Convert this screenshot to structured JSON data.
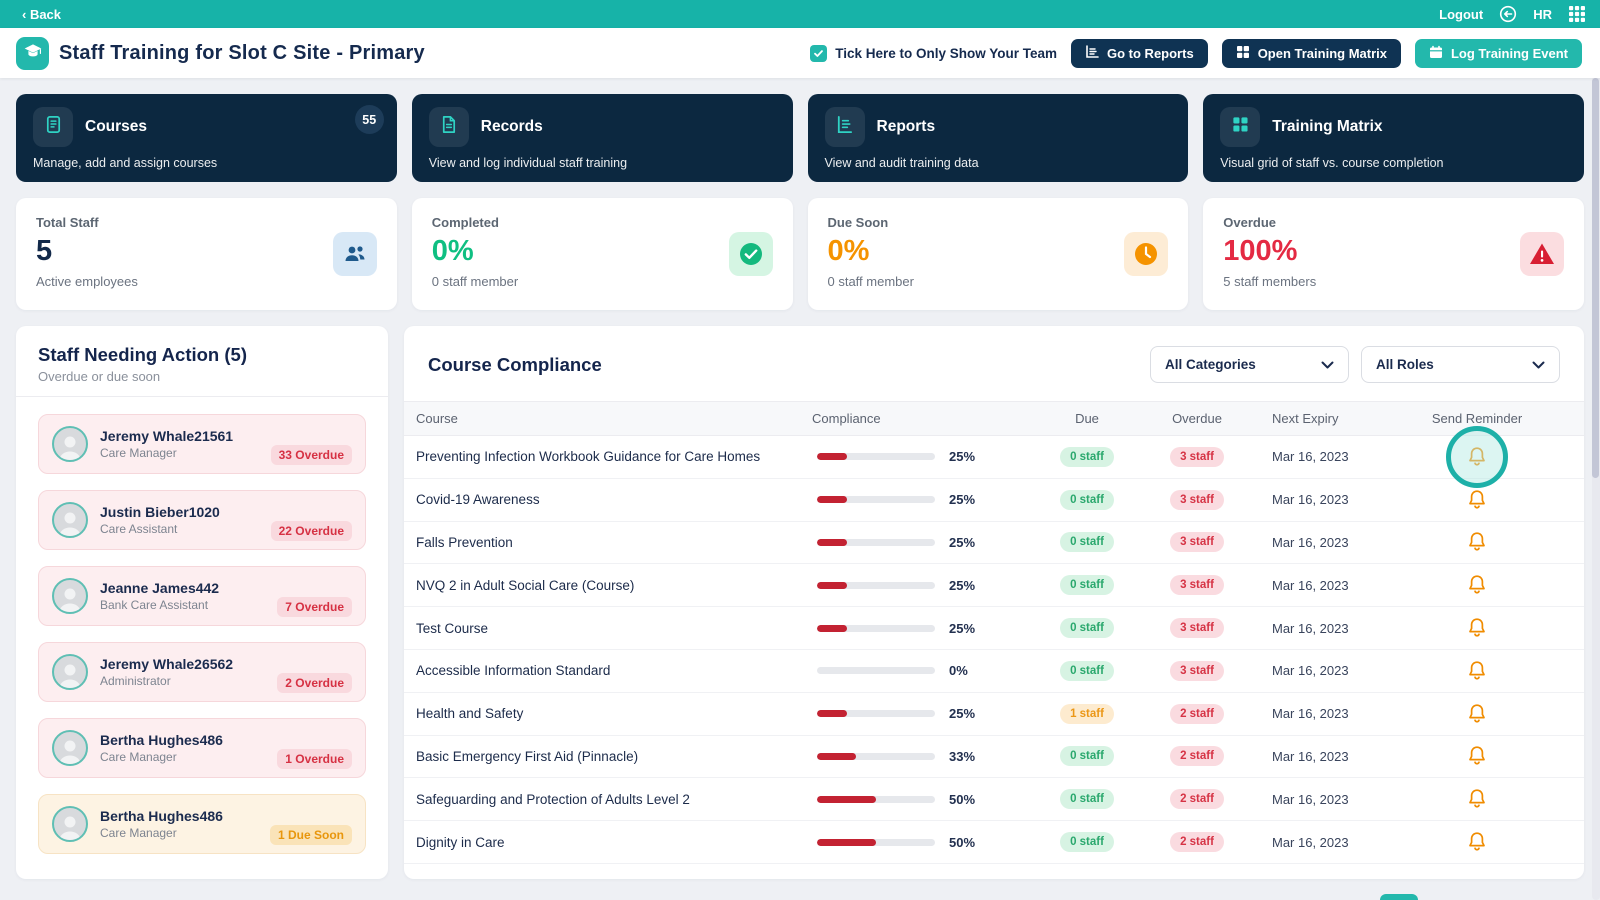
{
  "topbar": {
    "back": "‹ Back",
    "logout": "Logout",
    "user": "HR"
  },
  "header": {
    "title": "Staff Training for Slot C Site - Primary",
    "team_checkbox_label": "Tick Here to Only Show Your Team",
    "buttons": {
      "reports": "Go to Reports",
      "matrix": "Open Training Matrix",
      "log_event": "Log Training Event"
    }
  },
  "nav_cards": [
    {
      "icon": "book-icon",
      "title": "Courses",
      "description": "Manage, add and assign courses",
      "badge": "55"
    },
    {
      "icon": "document-icon",
      "title": "Records",
      "description": "View and log individual staff training",
      "badge": ""
    },
    {
      "icon": "bar-chart-icon",
      "title": "Reports",
      "description": "View and audit training data",
      "badge": ""
    },
    {
      "icon": "matrix-grid-icon",
      "title": "Training Matrix",
      "description": "Visual grid of staff vs. course completion",
      "badge": ""
    }
  ],
  "stat_cards": [
    {
      "label": "Total Staff",
      "value": "5",
      "sub": "Active employees",
      "icon": "people-icon",
      "theme": "blue",
      "value_class": "v-navy"
    },
    {
      "label": "Completed",
      "value": "0%",
      "sub": "0 staff member",
      "icon": "check-circle-icon",
      "theme": "green",
      "value_class": "v-green"
    },
    {
      "label": "Due Soon",
      "value": "0%",
      "sub": "0 staff member",
      "icon": "clock-icon",
      "theme": "orange",
      "value_class": "v-orange"
    },
    {
      "label": "Overdue",
      "value": "100%",
      "sub": "5 staff members",
      "icon": "warning-icon",
      "theme": "red",
      "value_class": "v-red"
    }
  ],
  "staff_panel": {
    "title": "Staff Needing Action (5)",
    "subtitle": "Overdue or due soon",
    "staff": [
      {
        "name": "Jeremy Whale21561",
        "role": "Care Manager",
        "badge": "33 Overdue",
        "status": "overdue"
      },
      {
        "name": "Justin Bieber1020",
        "role": "Care Assistant",
        "badge": "22 Overdue",
        "status": "overdue"
      },
      {
        "name": "Jeanne James442",
        "role": "Bank Care Assistant",
        "badge": "7 Overdue",
        "status": "overdue"
      },
      {
        "name": "Jeremy Whale26562",
        "role": "Administrator",
        "badge": "2 Overdue",
        "status": "overdue"
      },
      {
        "name": "Bertha Hughes486",
        "role": "Care Manager",
        "badge": "1 Overdue",
        "status": "overdue"
      },
      {
        "name": "Bertha Hughes486",
        "role": "Care Manager",
        "badge": "1 Due Soon",
        "status": "due_soon"
      }
    ]
  },
  "compliance": {
    "title": "Course Compliance",
    "filters": {
      "categories": "All Categories",
      "roles": "All Roles"
    },
    "columns": [
      "Course",
      "Compliance",
      "Due",
      "Overdue",
      "Next Expiry",
      "Send Reminder"
    ],
    "rows": [
      {
        "course": "Preventing Infection Workbook Guidance for Care Homes",
        "compliance_pct": 25,
        "compliance_label": "25%",
        "due": "0 staff",
        "due_status": "ok",
        "overdue": "3 staff",
        "next_expiry": "Mar 16, 2023",
        "highlighted": true
      },
      {
        "course": "Covid-19 Awareness",
        "compliance_pct": 25,
        "compliance_label": "25%",
        "due": "0 staff",
        "due_status": "ok",
        "overdue": "3 staff",
        "next_expiry": "Mar 16, 2023",
        "highlighted": false
      },
      {
        "course": "Falls Prevention",
        "compliance_pct": 25,
        "compliance_label": "25%",
        "due": "0 staff",
        "due_status": "ok",
        "overdue": "3 staff",
        "next_expiry": "Mar 16, 2023",
        "highlighted": false
      },
      {
        "course": "NVQ 2 in Adult Social Care (Course)",
        "compliance_pct": 25,
        "compliance_label": "25%",
        "due": "0 staff",
        "due_status": "ok",
        "overdue": "3 staff",
        "next_expiry": "Mar 16, 2023",
        "highlighted": false
      },
      {
        "course": "Test Course",
        "compliance_pct": 25,
        "compliance_label": "25%",
        "due": "0 staff",
        "due_status": "ok",
        "overdue": "3 staff",
        "next_expiry": "Mar 16, 2023",
        "highlighted": false
      },
      {
        "course": "Accessible Information Standard",
        "compliance_pct": 0,
        "compliance_label": "0%",
        "due": "0 staff",
        "due_status": "ok",
        "overdue": "3 staff",
        "next_expiry": "Mar 16, 2023",
        "highlighted": false
      },
      {
        "course": "Health and Safety",
        "compliance_pct": 25,
        "compliance_label": "25%",
        "due": "1 staff",
        "due_status": "warn",
        "overdue": "2 staff",
        "next_expiry": "Mar 16, 2023",
        "highlighted": false
      },
      {
        "course": "Basic Emergency First Aid (Pinnacle)",
        "compliance_pct": 33,
        "compliance_label": "33%",
        "due": "0 staff",
        "due_status": "ok",
        "overdue": "2 staff",
        "next_expiry": "Mar 16, 2023",
        "highlighted": false
      },
      {
        "course": "Safeguarding and Protection of Adults Level 2",
        "compliance_pct": 50,
        "compliance_label": "50%",
        "due": "0 staff",
        "due_status": "ok",
        "overdue": "2 staff",
        "next_expiry": "Mar 16, 2023",
        "highlighted": false
      },
      {
        "course": "Dignity in Care",
        "compliance_pct": 50,
        "compliance_label": "50%",
        "due": "0 staff",
        "due_status": "ok",
        "overdue": "2 staff",
        "next_expiry": "Mar 16, 2023",
        "highlighted": false
      }
    ]
  },
  "colors": {
    "brand_teal": "#17b3a8",
    "navy_card": "#0c2840",
    "navy_button": "#0f3353",
    "progress_red": "#c32232",
    "overdue_red": "#e42a43",
    "due_orange": "#f59300",
    "complete_green": "#0fbf82",
    "bell_orange": "#f08c00"
  }
}
